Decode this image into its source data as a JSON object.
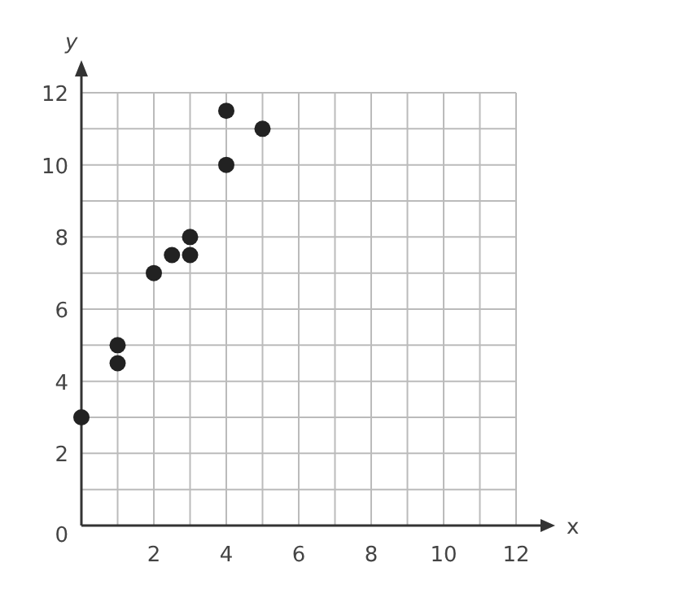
{
  "chart_data": {
    "type": "scatter",
    "xlabel": "x",
    "ylabel": "y",
    "x": [
      0,
      1,
      1,
      2,
      2.5,
      3,
      3,
      4,
      4,
      5
    ],
    "values": [
      3,
      5,
      4.5,
      7,
      7.5,
      8,
      7.5,
      11.5,
      10,
      11
    ],
    "color": "#222222",
    "marker": "circle",
    "grid": true,
    "xlim": [
      0,
      12
    ],
    "ylim": [
      0,
      12
    ],
    "xticks": [
      {
        "value": 0,
        "label": null
      },
      {
        "value": 1,
        "label": null
      },
      2,
      {
        "value": 3,
        "label": null
      },
      4,
      {
        "value": 5,
        "label": null
      },
      6,
      {
        "value": 7,
        "label": null
      },
      8,
      {
        "value": 9,
        "label": null
      },
      10,
      {
        "value": 11,
        "label": null
      },
      12
    ],
    "yticks": [
      0,
      {
        "value": 1,
        "label": null
      },
      2,
      {
        "value": 3,
        "label": null
      },
      4,
      {
        "value": 5,
        "label": null
      },
      6,
      {
        "value": 7,
        "label": null
      },
      8,
      {
        "value": 9,
        "label": null
      },
      10,
      {
        "value": 11,
        "label": null
      },
      12
    ]
  }
}
